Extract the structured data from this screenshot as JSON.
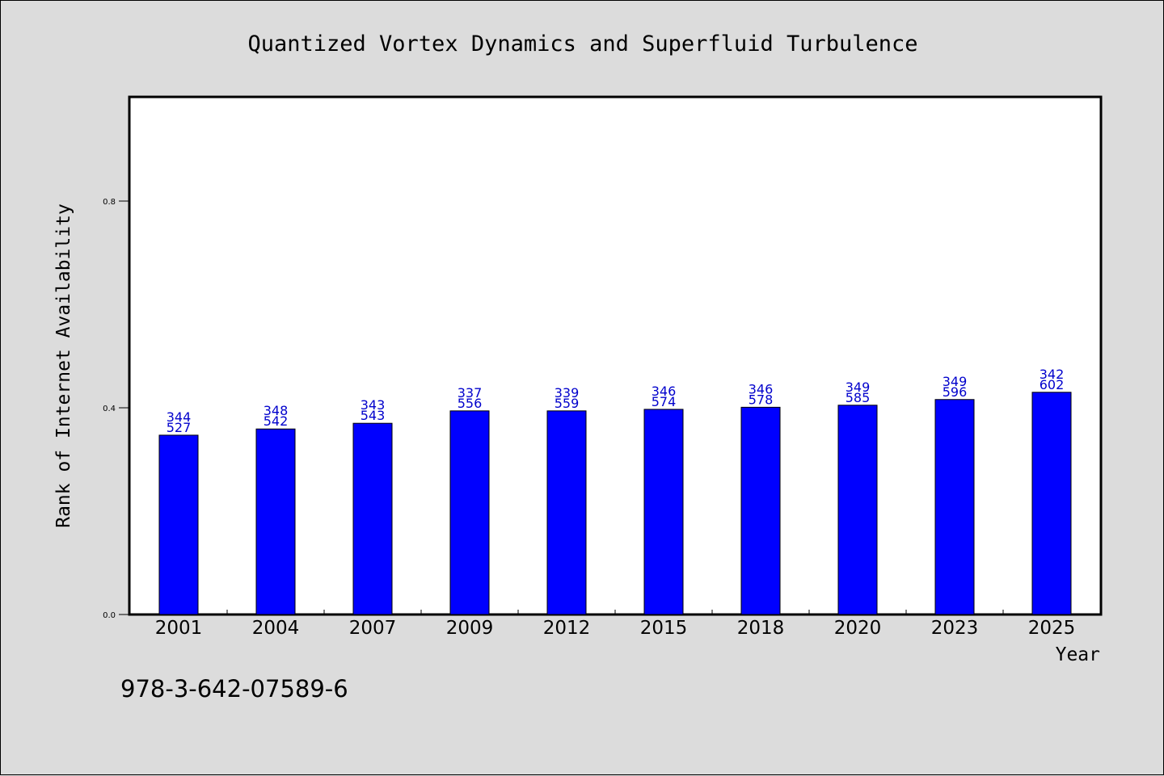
{
  "chart_data": {
    "type": "bar",
    "title": "Quantized Vortex Dynamics and Superfluid Turbulence",
    "xlabel": "Year",
    "ylabel": "Rank of Internet Availability",
    "categories": [
      "2001",
      "2004",
      "2007",
      "2009",
      "2012",
      "2015",
      "2018",
      "2020",
      "2023",
      "2025"
    ],
    "values": [
      0.347,
      0.359,
      0.37,
      0.394,
      0.394,
      0.397,
      0.401,
      0.405,
      0.416,
      0.43
    ],
    "data_labels": [
      [
        "344",
        "527"
      ],
      [
        "348",
        "542"
      ],
      [
        "343",
        "543"
      ],
      [
        "337",
        "556"
      ],
      [
        "339",
        "559"
      ],
      [
        "346",
        "574"
      ],
      [
        "346",
        "578"
      ],
      [
        "349",
        "585"
      ],
      [
        "349",
        "596"
      ],
      [
        "342",
        "602"
      ]
    ],
    "ylim": [
      0,
      1.0
    ],
    "yticks": [
      "0.0",
      "0.4",
      "0.8"
    ],
    "ytick_values": [
      0.0,
      0.4,
      0.8
    ],
    "grid": false,
    "bar_color": "#0000ff",
    "label_color": "#0000cc",
    "background_color": "#dcdcdc",
    "plot_background": "#ffffff"
  },
  "footer": {
    "isbn": "978-3-642-07589-6"
  }
}
